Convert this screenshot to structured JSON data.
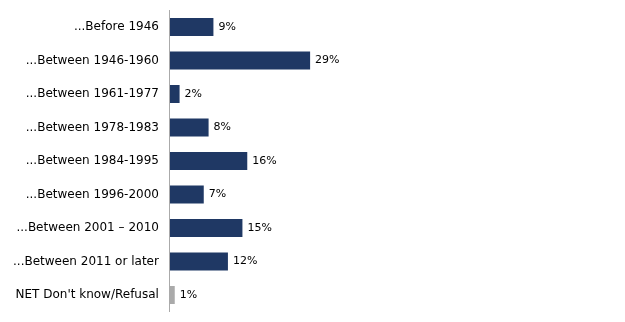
{
  "chart_data": {
    "type": "bar",
    "orientation": "horizontal",
    "categories": [
      "...Before 1946",
      "...Between 1946-1960",
      "...Between 1961-1977",
      "...Between 1978-1983",
      "...Between 1984-1995",
      "...Between 1996-2000",
      "...Between 2001 – 2010",
      "...Between 2011 or later",
      "NET Don't know/Refusal"
    ],
    "values": [
      9,
      29,
      2,
      8,
      16,
      7,
      15,
      12,
      1
    ],
    "value_labels": [
      "9%",
      "29%",
      "2%",
      "8%",
      "16%",
      "7%",
      "15%",
      "12%",
      "1%"
    ],
    "colors": [
      "#1F3864",
      "#1F3864",
      "#1F3864",
      "#1F3864",
      "#1F3864",
      "#1F3864",
      "#1F3864",
      "#1F3864",
      "#AAAAAA"
    ],
    "xlim": [
      0,
      90
    ],
    "data_labels": true,
    "tick_labels": "y",
    "grid": false
  }
}
